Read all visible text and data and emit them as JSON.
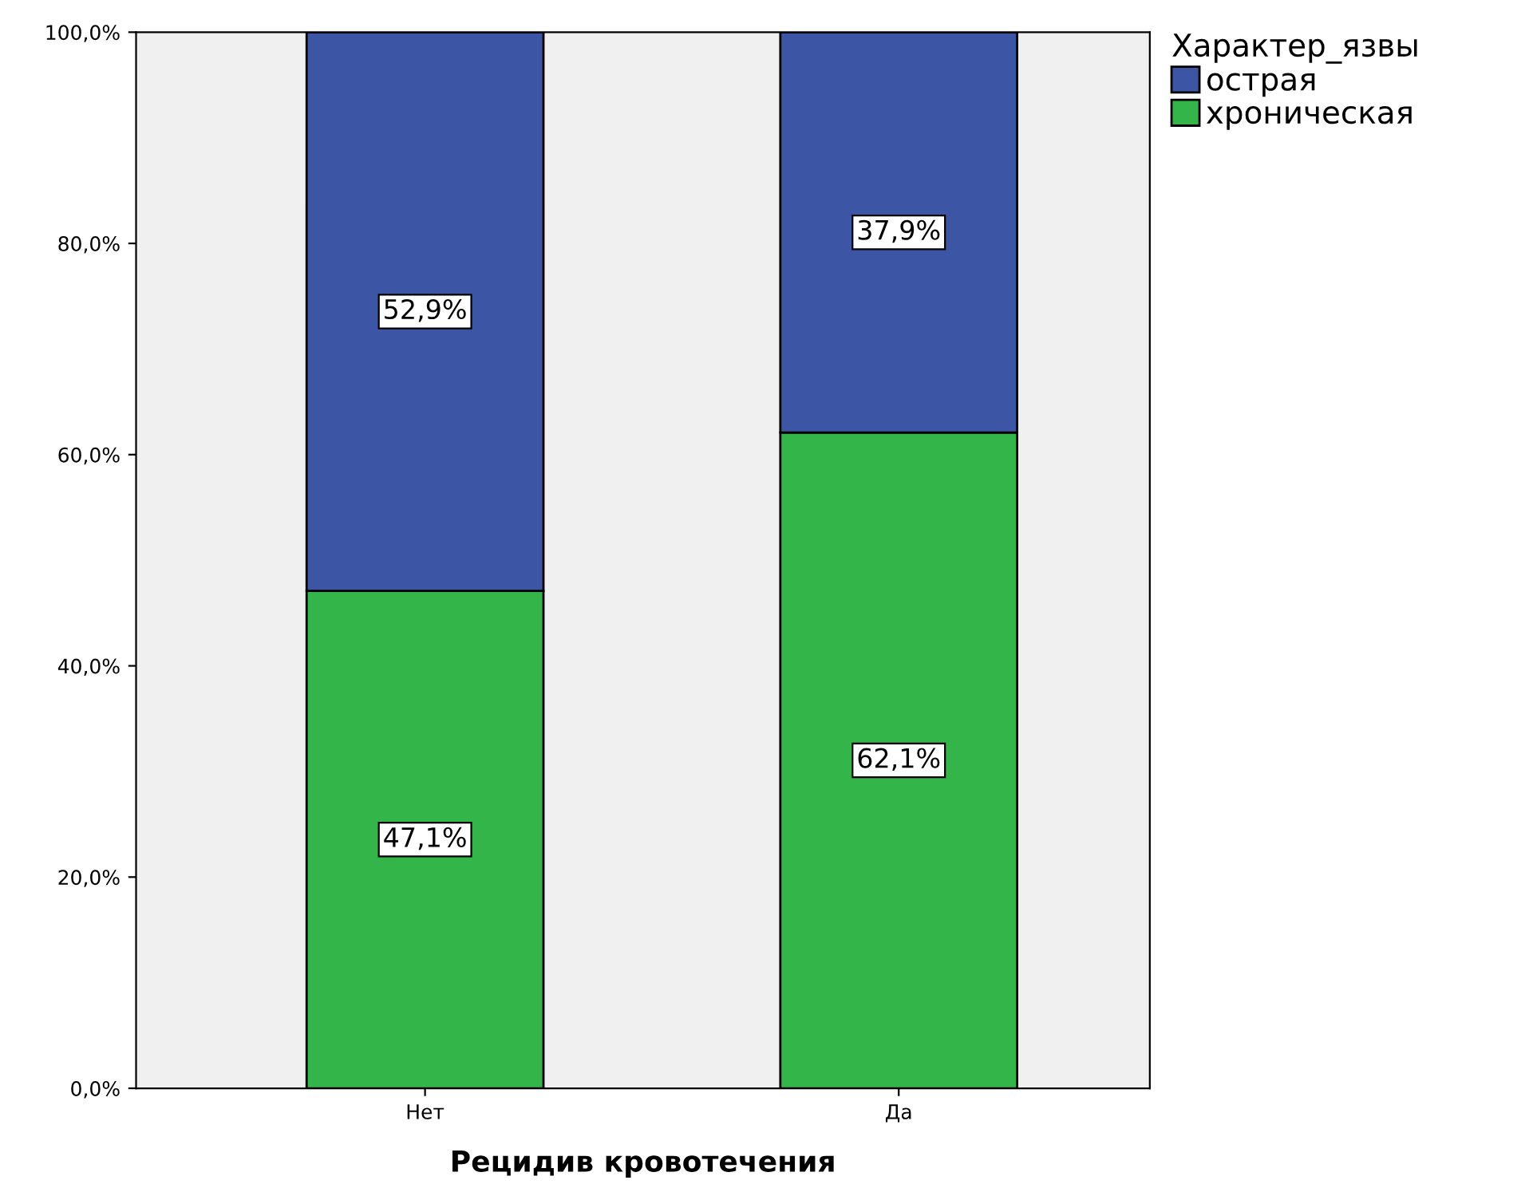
{
  "chart_data": {
    "type": "bar",
    "stacked": true,
    "xlabel": "Рецидив кровотечения",
    "legend_title": "Характер_язвы",
    "legend": "top right",
    "categories": [
      "Нет",
      "Да"
    ],
    "series": [
      {
        "name": "хроническая",
        "color": "#33b54a",
        "values": [
          47.1,
          62.1
        ],
        "value_labels": [
          "47,1%",
          "62,1%"
        ]
      },
      {
        "name": "острая",
        "color": "#3c55a5",
        "values": [
          52.9,
          37.9
        ],
        "value_labels": [
          "52,9%",
          "37,9%"
        ]
      }
    ],
    "ylim": [
      0,
      100
    ],
    "yticks": [
      {
        "value": 0,
        "label": "0,0%"
      },
      {
        "value": 20,
        "label": "20,0%"
      },
      {
        "value": 40,
        "label": "40,0%"
      },
      {
        "value": 60,
        "label": "60,0%"
      },
      {
        "value": 80,
        "label": "80,0%"
      },
      {
        "value": 100,
        "label": "100,0%"
      }
    ],
    "grid": false
  }
}
